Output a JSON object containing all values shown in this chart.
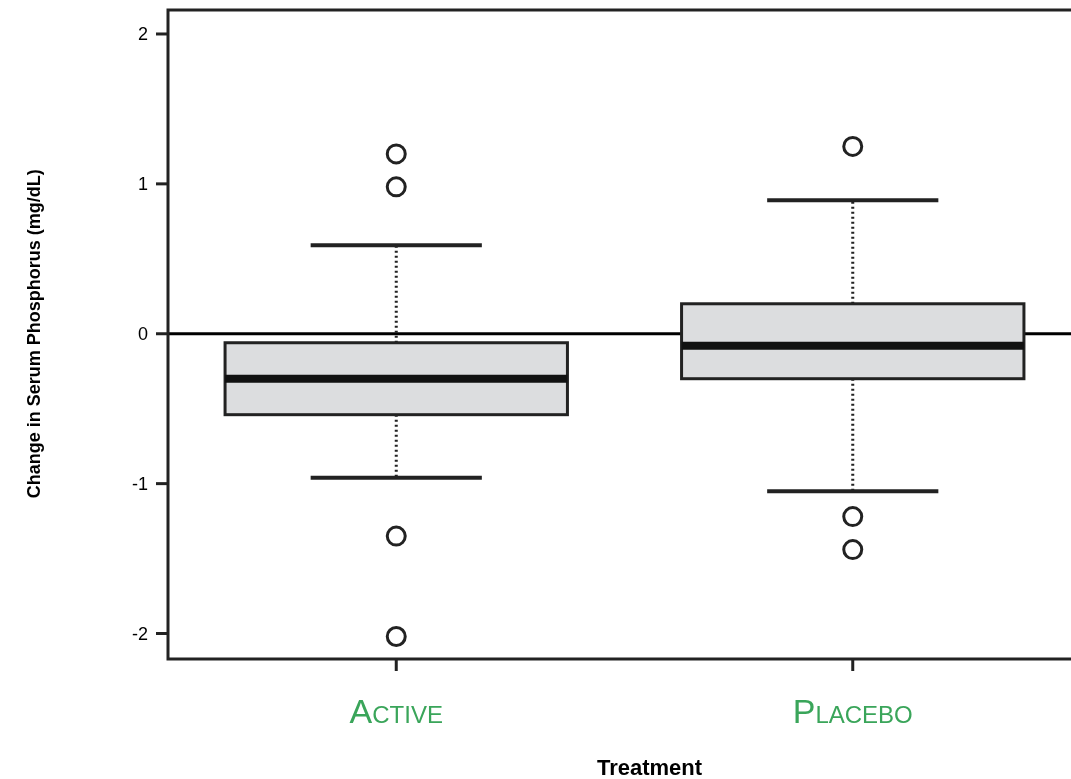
{
  "chart_data": {
    "type": "box",
    "xlabel": "Treatment",
    "ylabel": "Change in Serum Phosphorus (mg/dL)",
    "categories": [
      "Active",
      "Placebo"
    ],
    "color": "#dcdddf",
    "boxes": [
      {
        "low": -0.96,
        "q1": -0.54,
        "median": -0.3,
        "q3": -0.06,
        "high": 0.59,
        "outliers": [
          1.2,
          0.98,
          -1.35,
          -2.02
        ]
      },
      {
        "low": -1.05,
        "q1": -0.3,
        "median": -0.08,
        "q3": 0.2,
        "high": 0.89,
        "outliers": [
          1.25,
          -1.22,
          -1.44
        ]
      }
    ],
    "ylim": [
      -2.17,
      2.16
    ],
    "yticks": [
      -2,
      -1,
      0,
      1,
      2
    ],
    "ref_lines": [
      {
        "axis": "y",
        "value": 0,
        "color": "#000000"
      }
    ],
    "grid": false
  }
}
